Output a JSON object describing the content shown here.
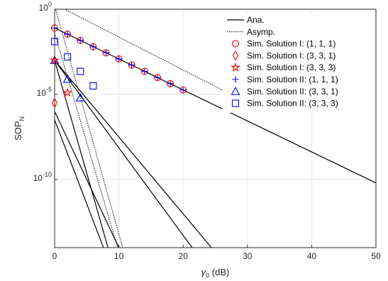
{
  "chart_data": {
    "type": "line",
    "xlabel": {
      "symbol": "γ",
      "sub": "0",
      "unit": " (dB)"
    },
    "ylabel": {
      "main": "SOP",
      "sub": "N"
    },
    "xlim": [
      0,
      50
    ],
    "ylim_log10": [
      -14,
      0
    ],
    "y_scale": "log",
    "grid": true,
    "legend_position": "top-right",
    "x_ticks": [
      "0",
      "10",
      "20",
      "30",
      "40",
      "50"
    ],
    "y_ticks": [
      {
        "value_log10": 0,
        "base": "10",
        "exp": "0"
      },
      {
        "value_log10": -5,
        "base": "10",
        "exp": "-5"
      },
      {
        "value_log10": -10,
        "base": "10",
        "exp": "-10"
      }
    ],
    "legend": [
      {
        "label": "Ana.",
        "kind": "solid-line"
      },
      {
        "label": "Asymp.",
        "kind": "dotted-line"
      },
      {
        "label": "Sim. Solution I: (1, 1, 1)",
        "kind": "marker",
        "marker": "circle",
        "color": "#ff0000"
      },
      {
        "label": "Sim. Solution I: (3, 3, 1)",
        "kind": "marker",
        "marker": "diamond",
        "color": "#ff0000"
      },
      {
        "label": "Sim. Solution I: (3, 3, 3)",
        "kind": "marker",
        "marker": "star",
        "color": "#ff0000"
      },
      {
        "label": "Sim. Solution II: (1, 1, 1)",
        "kind": "marker",
        "marker": "plus",
        "color": "#0000ff"
      },
      {
        "label": "Sim. Solution II: (3, 3, 1)",
        "kind": "marker",
        "marker": "triangle",
        "color": "#0000ff"
      },
      {
        "label": "Sim. Solution II: (3, 3, 3)",
        "kind": "marker",
        "marker": "square",
        "color": "#0000ff"
      }
    ],
    "analytical_curves": [
      {
        "x": [
          0,
          50
        ],
        "log10_y": [
          -1.1,
          -10.2
        ]
      },
      {
        "x": [
          0,
          24.4
        ],
        "log10_y": [
          -3.0,
          -14
        ]
      },
      {
        "x": [
          0,
          21.4
        ],
        "log10_y": [
          -3.0,
          -14
        ]
      },
      {
        "x": [
          0,
          10
        ],
        "log10_y": [
          -6.0,
          -14
        ]
      },
      {
        "x": [
          0,
          8.3
        ],
        "log10_y": [
          -3.0,
          -14
        ]
      },
      {
        "x": [
          0,
          7.6
        ],
        "log10_y": [
          -6.5,
          -14
        ]
      }
    ],
    "asymptotic_curves": [
      {
        "x": [
          0,
          30
        ],
        "log10_y": [
          0.3,
          -5.5
        ]
      },
      {
        "x": [
          0,
          10.6
        ],
        "log10_y": [
          0.2,
          -14
        ]
      },
      {
        "x": [
          0,
          9.8
        ],
        "log10_y": [
          -1.4,
          -14
        ]
      }
    ],
    "sim_markers": [
      {
        "marker": "circle",
        "color": "#ff0000",
        "x": [
          0,
          2,
          4,
          6,
          8,
          10,
          12,
          14,
          16,
          18,
          20
        ],
        "log10_y": [
          -1.1,
          -1.46,
          -1.83,
          -2.2,
          -2.56,
          -2.92,
          -3.28,
          -3.65,
          -4.01,
          -4.37,
          -4.74
        ]
      },
      {
        "marker": "plus",
        "color": "#0000ff",
        "x": [
          0,
          2,
          4,
          6,
          8,
          10,
          12,
          14,
          16,
          18,
          20
        ],
        "log10_y": [
          -1.1,
          -1.46,
          -1.83,
          -2.2,
          -2.56,
          -2.92,
          -3.28,
          -3.65,
          -4.01,
          -4.37,
          -4.74
        ]
      },
      {
        "marker": "square",
        "color": "#0000ff",
        "x": [
          0,
          2,
          4,
          6
        ],
        "log10_y": [
          -1.9,
          -2.8,
          -3.65,
          -4.5
        ]
      },
      {
        "marker": "triangle",
        "color": "#0000ff",
        "x": [
          0,
          2,
          4
        ],
        "log10_y": [
          -3.0,
          -4.1,
          -5.2
        ]
      },
      {
        "marker": "diamond",
        "color": "#ff0000",
        "x": [
          0
        ],
        "log10_y": [
          -5.5
        ]
      },
      {
        "marker": "star",
        "color": "#ff0000",
        "x": [
          0,
          2
        ],
        "log10_y": [
          -3.0,
          -4.9
        ]
      }
    ]
  }
}
